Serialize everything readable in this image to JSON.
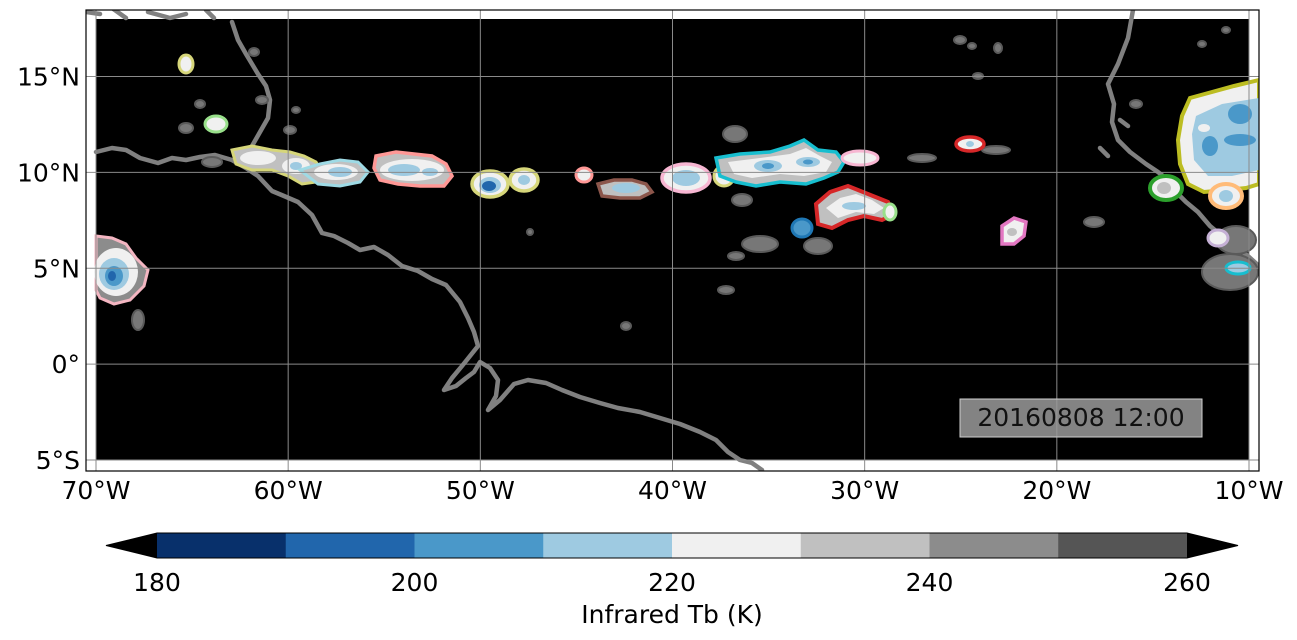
{
  "map": {
    "lon_ticks": [
      "70°W",
      "60°W",
      "50°W",
      "40°W",
      "30°W",
      "20°W",
      "10°W"
    ],
    "lat_ticks": [
      "15°N",
      "10°N",
      "5°N",
      "0°",
      "5°S"
    ],
    "lon_range": [
      -70,
      -10
    ],
    "lat_range": [
      -5,
      18
    ],
    "grid": true,
    "background_color": "#000000",
    "coastline_color": "#808080",
    "timestamp": "20160808 12:00"
  },
  "colorbar": {
    "label": "Infrared Tb (K)",
    "tick_labels": [
      "180",
      "200",
      "220",
      "240",
      "260"
    ],
    "levels": [
      180,
      190,
      200,
      210,
      220,
      230,
      240,
      250,
      260
    ],
    "colors": [
      "#08306b",
      "#2166ac",
      "#4a98c9",
      "#9ecae1",
      "#f0f0f0",
      "#c0c0c0",
      "#8c8c8c",
      "#555555"
    ],
    "extend": "both"
  },
  "cloud_tracks": [
    {
      "lon": -69,
      "lat": 5.0,
      "outline": "#f4b6c2"
    },
    {
      "lon": -65.5,
      "lat": 15.8,
      "outline": "#d6d67a"
    },
    {
      "lon": -64,
      "lat": 12.5,
      "outline": "#98df8a"
    },
    {
      "lon": -61.5,
      "lat": 10.9,
      "outline": "#d6d67a"
    },
    {
      "lon": -58.5,
      "lat": 10.3,
      "outline": "#d6d67a"
    },
    {
      "lon": -56.5,
      "lat": 10.0,
      "outline": "#9edae5"
    },
    {
      "lon": -53,
      "lat": 10.1,
      "outline": "#ff9896"
    },
    {
      "lon": -49.5,
      "lat": 9.5,
      "outline": "#d6d67a"
    },
    {
      "lon": -47.5,
      "lat": 9.7,
      "outline": "#d6d67a"
    },
    {
      "lon": -44.8,
      "lat": 9.9,
      "outline": "#ff9896"
    },
    {
      "lon": -42.5,
      "lat": 9.1,
      "outline": "#8c564b"
    },
    {
      "lon": -39.5,
      "lat": 9.8,
      "outline": "#f7b6d2"
    },
    {
      "lon": -37.5,
      "lat": 10.0,
      "outline": "#d6d67a"
    },
    {
      "lon": -34,
      "lat": 10.4,
      "outline": "#17becf"
    },
    {
      "lon": -30.5,
      "lat": 10.8,
      "outline": "#f7b6d2"
    },
    {
      "lon": -33.5,
      "lat": 7.0,
      "outline": "#1f77b4"
    },
    {
      "lon": -31,
      "lat": 8.2,
      "outline": "#d62728"
    },
    {
      "lon": -28.8,
      "lat": 7.9,
      "outline": "#98df8a"
    },
    {
      "lon": -23.8,
      "lat": 11.5,
      "outline": "#d62728"
    },
    {
      "lon": -22.3,
      "lat": 7.0,
      "outline": "#e377c2"
    },
    {
      "lon": -14.5,
      "lat": 9.3,
      "outline": "#2ca02c"
    },
    {
      "lon": -11.5,
      "lat": 12.0,
      "outline": "#bcbd22"
    },
    {
      "lon": -11,
      "lat": 8.9,
      "outline": "#ffbb78"
    },
    {
      "lon": -12,
      "lat": 6.6,
      "outline": "#c5b0d5"
    },
    {
      "lon": -11,
      "lat": 5.1,
      "outline": "#17becf"
    }
  ]
}
